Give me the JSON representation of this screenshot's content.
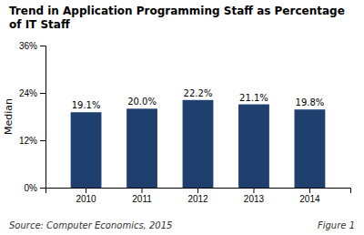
{
  "chart_data": {
    "type": "bar",
    "title": "Trend in Application Programming Staff as Percentage of IT Staff",
    "categories": [
      "2010",
      "2011",
      "2012",
      "2013",
      "2014"
    ],
    "values": [
      19.1,
      20.0,
      22.2,
      21.1,
      19.8
    ],
    "value_labels": [
      "19.1%",
      "20.0%",
      "22.2%",
      "21.1%",
      "19.8%"
    ],
    "data_labels": true,
    "color": "#1F3F6E",
    "ylabel": "Median",
    "ylim": [
      0,
      36
    ],
    "yticks": [
      {
        "value": 0,
        "label": "0%"
      },
      {
        "value": 12,
        "label": "12%"
      },
      {
        "value": 24,
        "label": "24%"
      },
      {
        "value": 36,
        "label": "36%"
      }
    ],
    "grid": false,
    "annotations": [
      "Source: Computer Economics, 2015",
      "Figure 1"
    ]
  }
}
